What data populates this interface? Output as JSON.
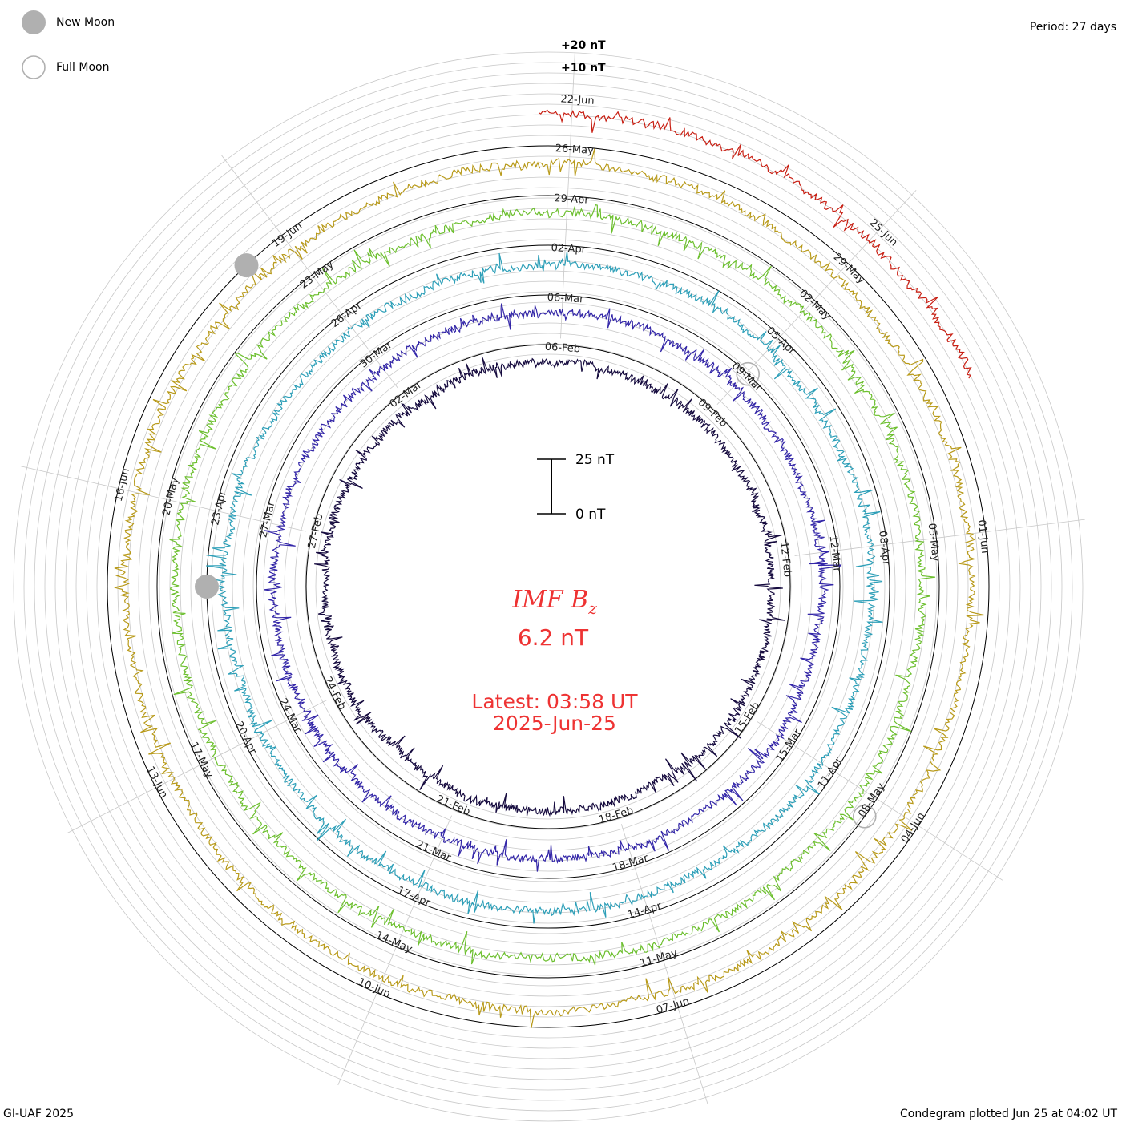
{
  "chart_data": {
    "type": "condegram",
    "title": "IMF Bz",
    "quantity_symbol": "B",
    "quantity_subscript": "z",
    "latest_value": "6.2 nT",
    "latest_label": "Latest: 03:58 UT",
    "latest_date": "2025-Jun-25",
    "period": "Period: 27 days",
    "credit": "GI-UAF 2025",
    "plotted": "Condegram plotted Jun 25 at 04:02 UT",
    "legend": [
      {
        "name": "New Moon",
        "style": "filled"
      },
      {
        "name": "Full Moon",
        "style": "hollow"
      }
    ],
    "ring_scale_labels": [
      "+20 nT",
      "+10 nT"
    ],
    "scale_bar": {
      "top": "25 nT",
      "bottom": "0 nT"
    },
    "rotations": [
      {
        "color": "#150a3e",
        "dates": [
          "06-Feb",
          "09-Feb",
          "12-Feb",
          "15-Feb",
          "18-Feb",
          "21-Feb",
          "24-Feb",
          "27-Feb",
          "02-Mar"
        ]
      },
      {
        "color": "#3326a8",
        "dates": [
          "06-Mar",
          "09-Mar",
          "12-Mar",
          "15-Mar",
          "18-Mar",
          "21-Mar",
          "24-Mar",
          "27-Mar",
          "30-Mar"
        ]
      },
      {
        "color": "#2d9fb8",
        "dates": [
          "02-Apr",
          "05-Apr",
          "08-Apr",
          "11-Apr",
          "14-Apr",
          "17-Apr",
          "20-Apr",
          "23-Apr",
          "26-Apr"
        ]
      },
      {
        "color": "#6cbf2e",
        "dates": [
          "29-Apr",
          "02-May",
          "05-May",
          "08-May",
          "11-May",
          "14-May",
          "17-May",
          "20-May",
          "23-May"
        ]
      },
      {
        "color": "#b89a1a",
        "dates": [
          "26-May",
          "29-May",
          "01-Jun",
          "04-Jun",
          "07-Jun",
          "10-Jun",
          "13-Jun",
          "16-Jun",
          "19-Jun"
        ]
      },
      {
        "color": "#c81e12",
        "dates": [
          "22-Jun",
          "25-Jun"
        ]
      }
    ],
    "moon_markers": [
      {
        "type": "new",
        "rotation": 4
      },
      {
        "type": "new",
        "rotation": 2
      },
      {
        "type": "full",
        "rotation": 1
      },
      {
        "type": "full",
        "rotation": 3
      }
    ]
  }
}
